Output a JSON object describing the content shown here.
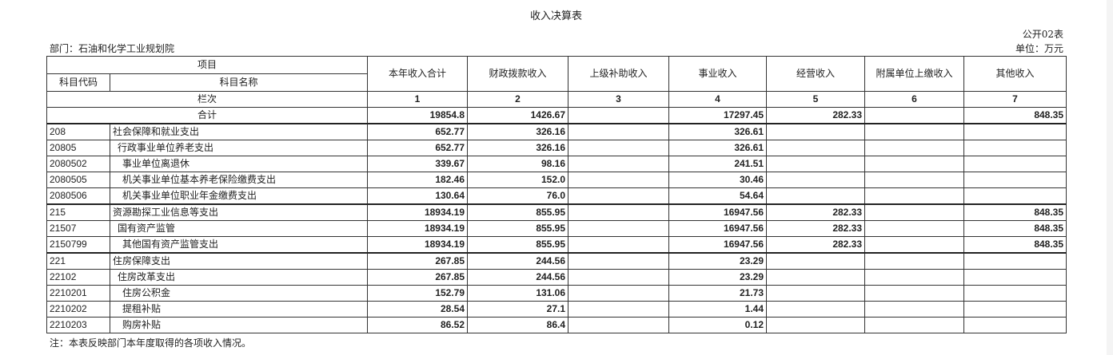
{
  "title": "收入决算表",
  "form_code": "公开02表",
  "department": "部门：石油和化学工业规划院",
  "unit": "单位：万元",
  "header": {
    "item": "项目",
    "subject_code": "科目代码",
    "subject_name": "科目名称",
    "column_index_label": "栏次",
    "columns": [
      "本年收入合计",
      "财政拨款收入",
      "上级补助收入",
      "事业收入",
      "经营收入",
      "附属单位上缴收入",
      "其他收入"
    ],
    "column_numbers": [
      "1",
      "2",
      "3",
      "4",
      "5",
      "6",
      "7"
    ]
  },
  "total": {
    "label": "合计",
    "values": [
      "19854.8",
      "1426.67",
      "",
      "17297.45",
      "282.33",
      "",
      "848.35"
    ]
  },
  "rows": [
    {
      "code": "208",
      "name": "社会保障和就业支出",
      "level": 1,
      "values": [
        "652.77",
        "326.16",
        "",
        "326.61",
        "",
        "",
        ""
      ]
    },
    {
      "code": "20805",
      "name": "行政事业单位养老支出",
      "level": 2,
      "values": [
        "652.77",
        "326.16",
        "",
        "326.61",
        "",
        "",
        ""
      ]
    },
    {
      "code": "2080502",
      "name": "事业单位离退休",
      "level": 3,
      "values": [
        "339.67",
        "98.16",
        "",
        "241.51",
        "",
        "",
        ""
      ]
    },
    {
      "code": "2080505",
      "name": "机关事业单位基本养老保险缴费支出",
      "level": 3,
      "values": [
        "182.46",
        "152.0",
        "",
        "30.46",
        "",
        "",
        ""
      ]
    },
    {
      "code": "2080506",
      "name": "机关事业单位职业年金缴费支出",
      "level": 3,
      "values": [
        "130.64",
        "76.0",
        "",
        "54.64",
        "",
        "",
        ""
      ]
    },
    {
      "code": "215",
      "name": "资源勘探工业信息等支出",
      "level": 1,
      "values": [
        "18934.19",
        "855.95",
        "",
        "16947.56",
        "282.33",
        "",
        "848.35"
      ]
    },
    {
      "code": "21507",
      "name": "国有资产监管",
      "level": 2,
      "values": [
        "18934.19",
        "855.95",
        "",
        "16947.56",
        "282.33",
        "",
        "848.35"
      ]
    },
    {
      "code": "2150799",
      "name": "其他国有资产监管支出",
      "level": 3,
      "values": [
        "18934.19",
        "855.95",
        "",
        "16947.56",
        "282.33",
        "",
        "848.35"
      ]
    },
    {
      "code": "221",
      "name": "住房保障支出",
      "level": 1,
      "values": [
        "267.85",
        "244.56",
        "",
        "23.29",
        "",
        "",
        ""
      ]
    },
    {
      "code": "22102",
      "name": "住房改革支出",
      "level": 2,
      "values": [
        "267.85",
        "244.56",
        "",
        "23.29",
        "",
        "",
        ""
      ]
    },
    {
      "code": "2210201",
      "name": "住房公积金",
      "level": 3,
      "values": [
        "152.79",
        "131.06",
        "",
        "21.73",
        "",
        "",
        ""
      ]
    },
    {
      "code": "2210202",
      "name": "提租补贴",
      "level": 3,
      "values": [
        "28.54",
        "27.1",
        "",
        "1.44",
        "",
        "",
        ""
      ]
    },
    {
      "code": "2210203",
      "name": "购房补贴",
      "level": 3,
      "values": [
        "86.52",
        "86.4",
        "",
        "0.12",
        "",
        "",
        ""
      ]
    }
  ],
  "note": "注：本表反映部门本年度取得的各项收入情况。"
}
